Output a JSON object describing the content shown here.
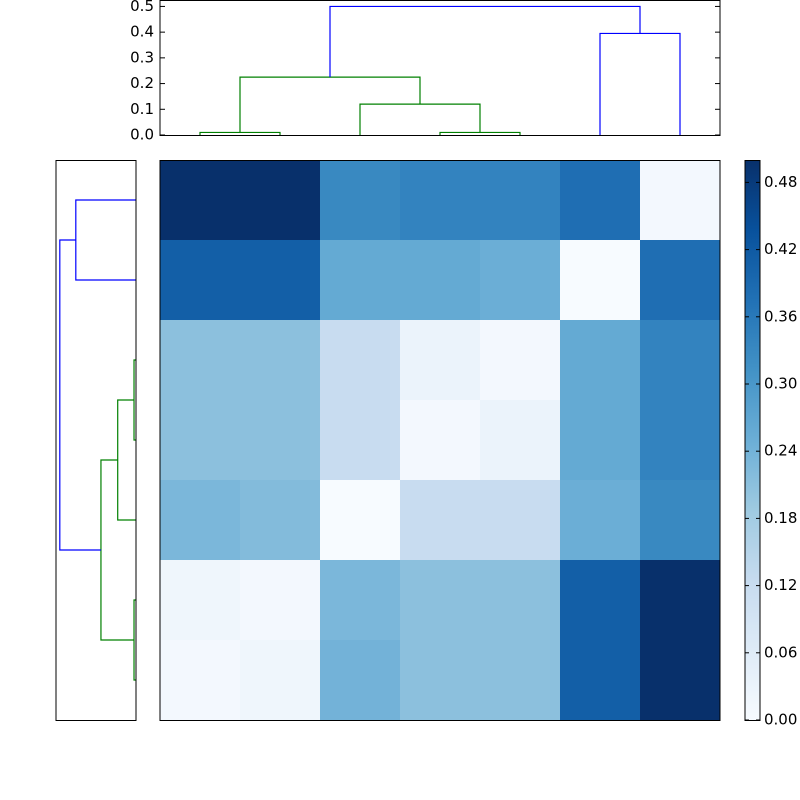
{
  "chart_data": [
    {
      "type": "dendrogram",
      "orientation": "top",
      "xlim": [
        0,
        70
      ],
      "ylim": [
        0,
        0.525
      ],
      "yticks": [
        {
          "value": 0,
          "label": "0.0"
        },
        0.1,
        0.2,
        0.3,
        0.4,
        0.5
      ],
      "links": [
        {
          "icoord": [
            5,
            5,
            15,
            15
          ],
          "dcoord": [
            0,
            0.01,
            0.01,
            0
          ],
          "color": "#008000"
        },
        {
          "icoord": [
            35,
            35,
            45,
            45
          ],
          "dcoord": [
            0,
            0.01,
            0.01,
            0
          ],
          "color": "#008000"
        },
        {
          "icoord": [
            25,
            25,
            40,
            40
          ],
          "dcoord": [
            0,
            0.12,
            0.12,
            0.01
          ],
          "color": "#008000"
        },
        {
          "icoord": [
            10,
            10,
            32.5,
            32.5
          ],
          "dcoord": [
            0.01,
            0.225,
            0.225,
            0.12
          ],
          "color": "#008000"
        },
        {
          "icoord": [
            55,
            55,
            65,
            65
          ],
          "dcoord": [
            0,
            0.395,
            0.395,
            0
          ],
          "color": "#0000ff"
        },
        {
          "icoord": [
            21.25,
            21.25,
            60,
            60
          ],
          "dcoord": [
            0.225,
            0.5,
            0.5,
            0.395
          ],
          "color": "#0000ff"
        }
      ]
    },
    {
      "type": "dendrogram",
      "orientation": "left",
      "xlim": [
        0.525,
        0
      ],
      "ylim": [
        70,
        0
      ],
      "links": [
        {
          "icoord": [
            5,
            5,
            15,
            15
          ],
          "dcoord": [
            0,
            0.395,
            0.395,
            0
          ],
          "color": "#0000ff"
        },
        {
          "icoord": [
            25,
            25,
            35,
            35
          ],
          "dcoord": [
            0,
            0.013,
            0.013,
            0
          ],
          "color": "#008000"
        },
        {
          "icoord": [
            30,
            30,
            45,
            45
          ],
          "dcoord": [
            0.013,
            0.12,
            0.12,
            0
          ],
          "color": "#008000"
        },
        {
          "icoord": [
            55,
            55,
            65,
            65
          ],
          "dcoord": [
            0,
            0.013,
            0.013,
            0
          ],
          "color": "#008000"
        },
        {
          "icoord": [
            37.5,
            37.5,
            60,
            60
          ],
          "dcoord": [
            0.12,
            0.23,
            0.23,
            0.013
          ],
          "color": "#008000"
        },
        {
          "icoord": [
            10,
            10,
            48.75,
            48.75
          ],
          "dcoord": [
            0.395,
            0.5,
            0.5,
            0.23
          ],
          "color": "#0000ff"
        }
      ]
    },
    {
      "type": "heatmap",
      "colormap": "Blues",
      "clim": [
        0,
        0.5
      ],
      "cticks": [
        {
          "value": 0,
          "label": "0.00"
        },
        {
          "value": 0.06,
          "label": "0.06"
        },
        {
          "value": 0.12,
          "label": "0.12"
        },
        {
          "value": 0.18,
          "label": "0.18"
        },
        {
          "value": 0.24,
          "label": "0.24"
        },
        {
          "value": 0.3,
          "label": "0.30"
        },
        {
          "value": 0.36,
          "label": "0.36"
        },
        {
          "value": 0.42,
          "label": "0.42"
        },
        {
          "value": 0.48,
          "label": "0.48"
        }
      ],
      "values": [
        [
          0.5,
          0.5,
          0.33,
          0.34,
          0.34,
          0.38,
          0.01
        ],
        [
          0.41,
          0.41,
          0.26,
          0.26,
          0.25,
          0.0,
          0.38
        ],
        [
          0.21,
          0.21,
          0.12,
          0.03,
          0.01,
          0.26,
          0.34
        ],
        [
          0.21,
          0.21,
          0.12,
          0.01,
          0.03,
          0.26,
          0.34
        ],
        [
          0.23,
          0.22,
          0.0,
          0.12,
          0.12,
          0.25,
          0.33
        ],
        [
          0.02,
          0.01,
          0.23,
          0.21,
          0.21,
          0.41,
          0.5
        ],
        [
          0.01,
          0.02,
          0.24,
          0.21,
          0.21,
          0.41,
          0.5
        ]
      ]
    }
  ]
}
